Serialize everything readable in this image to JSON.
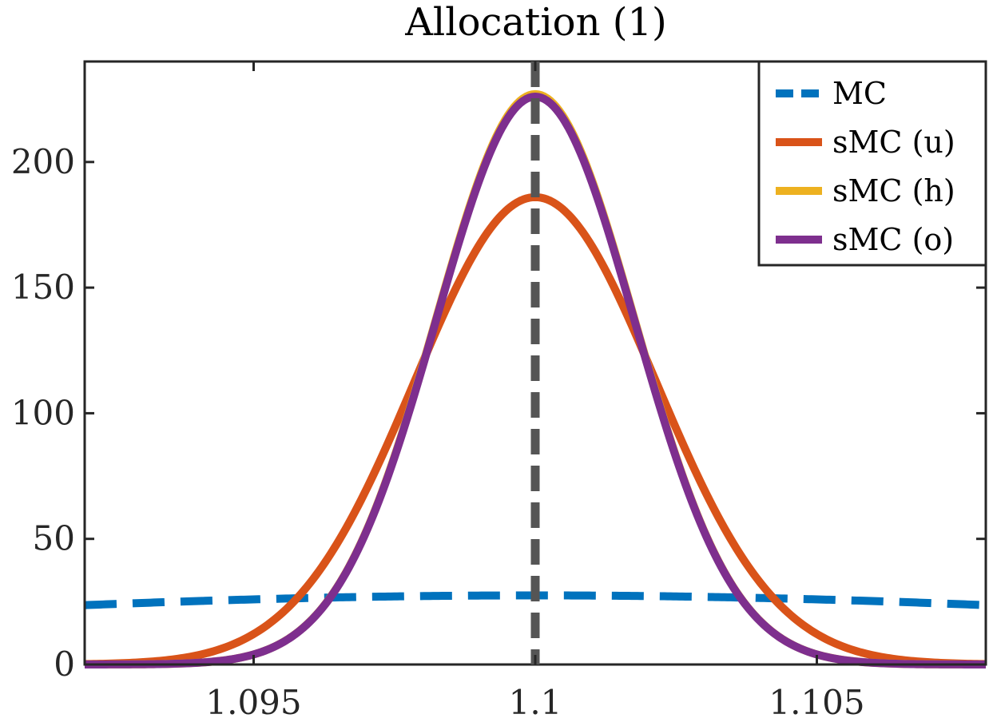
{
  "chart_data": {
    "type": "line",
    "title": "Allocation (1)",
    "xlabel": "",
    "ylabel": "",
    "xlim": [
      1.092,
      1.108
    ],
    "ylim": [
      0,
      240
    ],
    "xticks": [
      1.095,
      1.1,
      1.105
    ],
    "xtick_labels": [
      "1.095",
      "1.1",
      "1.105"
    ],
    "yticks": [
      0,
      50,
      100,
      150,
      200
    ],
    "ytick_labels": [
      "0",
      "50",
      "100",
      "150",
      "200"
    ],
    "grid": false,
    "legend_position": "top-right",
    "reference_line": {
      "x": 1.1,
      "style": "dashed",
      "color": "#555555"
    },
    "series": [
      {
        "name": "MC",
        "style": "dashed",
        "color": "#0072BD",
        "peak_x": 1.1,
        "sigma": 0.0145,
        "peak_y": 27.5
      },
      {
        "name": "sMC (u)",
        "style": "solid",
        "color": "#D95319",
        "peak_x": 1.1,
        "sigma": 0.00214,
        "peak_y": 186
      },
      {
        "name": "sMC (h)",
        "style": "solid",
        "color": "#EDB120",
        "peak_x": 1.1,
        "sigma": 0.00176,
        "peak_y": 227
      },
      {
        "name": "sMC (o)",
        "style": "solid",
        "color": "#7E2F8E",
        "peak_x": 1.1,
        "sigma": 0.00176,
        "peak_y": 226
      }
    ]
  }
}
